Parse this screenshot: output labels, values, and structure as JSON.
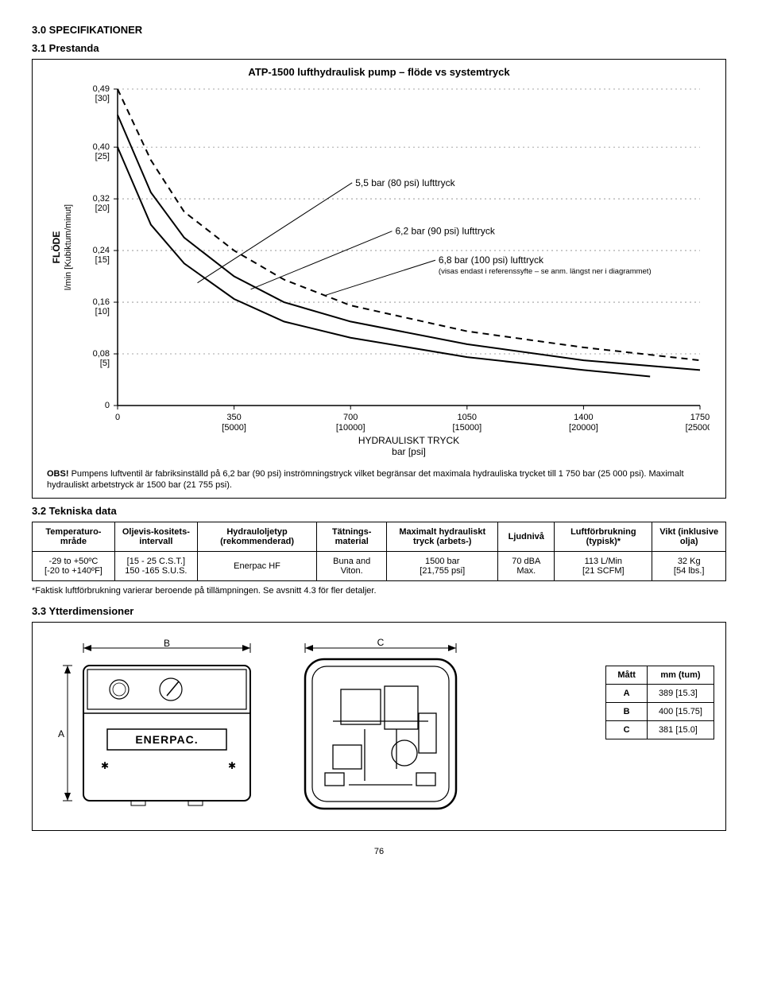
{
  "headings": {
    "h30": "3.0  SPECIFIKATIONER",
    "h31": "3.1  Prestanda",
    "h32": "3.2  Tekniska data",
    "h33": "3.3  Ytterdimensioner"
  },
  "chart": {
    "title": "ATP-1500 lufthydraulisk pump – flöde vs systemtryck",
    "type": "line",
    "y_axis": {
      "label_top": "FLÖDE",
      "label_bottom": "l/min [Kubiktum/minut]",
      "ticks": [
        {
          "v": "0,49",
          "sub": "[30]"
        },
        {
          "v": "0,40",
          "sub": "[25]"
        },
        {
          "v": "0,32",
          "sub": "[20]"
        },
        {
          "v": "0,24",
          "sub": "[15]"
        },
        {
          "v": "0,16",
          "sub": "[10]"
        },
        {
          "v": "0,08",
          "sub": "[5]"
        },
        {
          "v": "0",
          "sub": ""
        }
      ]
    },
    "x_axis": {
      "label_top": "HYDRAULISKT TRYCK",
      "label_bottom": "bar [psi]",
      "ticks": [
        {
          "v": "0",
          "sub": ""
        },
        {
          "v": "350",
          "sub": "[5000]"
        },
        {
          "v": "700",
          "sub": "[10000]"
        },
        {
          "v": "1050",
          "sub": "[15000]"
        },
        {
          "v": "1400",
          "sub": "[20000]"
        },
        {
          "v": "1750",
          "sub": "[25000]"
        }
      ]
    },
    "curves": {
      "c80": {
        "label": "5,5 bar (80 psi) lufttryck",
        "style": "solid"
      },
      "c90": {
        "label": "6,2 bar (90 psi) lufttryck",
        "style": "solid"
      },
      "c100": {
        "label": "6,8 bar (100 psi) lufttryck",
        "style": "dashed",
        "sublabel": "(visas endast i referenssyfte – se anm. längst ner i diagrammet)"
      }
    },
    "plot": {
      "xlim": [
        0,
        1750
      ],
      "ylim": [
        0,
        0.49
      ],
      "grid_color": "#888",
      "line_color": "#000",
      "background_color": "#ffffff",
      "series_80": [
        [
          0,
          0.4
        ],
        [
          100,
          0.28
        ],
        [
          200,
          0.22
        ],
        [
          350,
          0.165
        ],
        [
          500,
          0.13
        ],
        [
          700,
          0.105
        ],
        [
          1050,
          0.075
        ],
        [
          1400,
          0.055
        ],
        [
          1600,
          0.045
        ]
      ],
      "series_90": [
        [
          0,
          0.45
        ],
        [
          100,
          0.33
        ],
        [
          200,
          0.26
        ],
        [
          350,
          0.2
        ],
        [
          500,
          0.16
        ],
        [
          700,
          0.13
        ],
        [
          1050,
          0.095
        ],
        [
          1400,
          0.07
        ],
        [
          1750,
          0.055
        ]
      ],
      "series_100": [
        [
          0,
          0.49
        ],
        [
          100,
          0.38
        ],
        [
          200,
          0.3
        ],
        [
          350,
          0.24
        ],
        [
          500,
          0.195
        ],
        [
          700,
          0.155
        ],
        [
          1050,
          0.115
        ],
        [
          1400,
          0.09
        ],
        [
          1750,
          0.07
        ]
      ]
    },
    "note_label": "OBS!",
    "note_text": "Pumpens luftventil är fabriksinställd på 6,2 bar (90 psi) inströmningstryck vilket begränsar det maximala hydrauliska trycket till 1 750 bar (25 000 psi). Maximalt hydrauliskt arbetstryck är 1500 bar (21 755 psi)."
  },
  "tech_table": {
    "headers": [
      "Temperaturo-mråde",
      "Oljevis-kositets-intervall",
      "Hydrauloljetyp (rekommenderad)",
      "Tätnings-material",
      "Maximalt hydrauliskt tryck (arbets-)",
      "Ljudnivå",
      "Luftförbrukning (typisk)*",
      "Vikt (inklusive olja)"
    ],
    "row": [
      "-29 to +50ºC\n[-20 to +140ºF]",
      "[15 - 25 C.S.T.]\n150 -165 S.U.S.",
      "Enerpac HF",
      "Buna and Viton.",
      "1500 bar\n[21,755 psi]",
      "70 dBA Max.",
      "113 L/Min\n[21 SCFM]",
      "32 Kg\n[54 lbs.]"
    ]
  },
  "footnote": "*Faktisk luftförbrukning varierar beroende på tillämpningen. Se avsnitt 4.3 för fler detaljer.",
  "dims": {
    "labels": {
      "A": "A",
      "B": "B",
      "C": "C"
    },
    "brand": "ENERPAC.",
    "table": {
      "head": [
        "Mått",
        "mm (tum)"
      ],
      "rows": [
        [
          "A",
          "389 [15.3]"
        ],
        [
          "B",
          "400 [15.75]"
        ],
        [
          "C",
          "381 [15.0]"
        ]
      ]
    }
  },
  "page_number": "76"
}
